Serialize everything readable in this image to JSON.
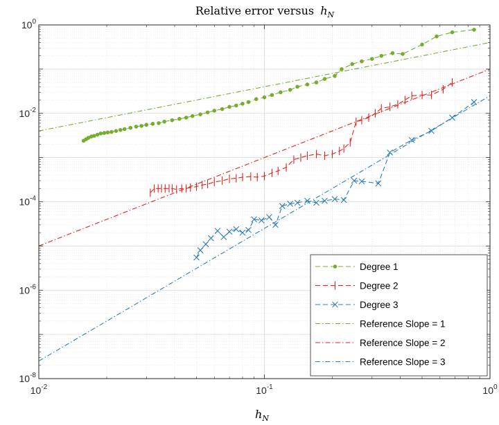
{
  "chart_data": {
    "type": "line",
    "title": "Relative error versus",
    "title_math": "h",
    "title_math_sub": "N",
    "xlabel": "h",
    "xlabel_sub": "N",
    "xscale": "log",
    "yscale": "log",
    "xlim": [
      0.01,
      1
    ],
    "ylim": [
      1e-08,
      1
    ],
    "grid": "on (major and minor)",
    "legend_position": "bottom-right",
    "x_ticks": [
      {
        "base": "10",
        "exp": "-2"
      },
      {
        "base": "10",
        "exp": "-1"
      },
      {
        "base": "10",
        "exp": "0"
      }
    ],
    "y_ticks": [
      {
        "base": "10",
        "exp": "-8"
      },
      {
        "base": "10",
        "exp": "-6"
      },
      {
        "base": "10",
        "exp": "-4"
      },
      {
        "base": "10",
        "exp": "-2"
      },
      {
        "base": "10",
        "exp": "0"
      }
    ],
    "series": [
      {
        "name": "Degree 1",
        "color": "#77AC30",
        "line": "dashed",
        "marker": "dot",
        "x": [
          0.0158,
          0.0162,
          0.0166,
          0.0171,
          0.0176,
          0.0182,
          0.0188,
          0.0195,
          0.0202,
          0.021,
          0.022,
          0.023,
          0.024,
          0.0255,
          0.027,
          0.0285,
          0.03,
          0.032,
          0.034,
          0.036,
          0.039,
          0.042,
          0.045,
          0.048,
          0.052,
          0.056,
          0.06,
          0.065,
          0.07,
          0.075,
          0.08,
          0.085,
          0.092,
          0.1,
          0.108,
          0.118,
          0.13,
          0.14,
          0.155,
          0.17,
          0.185,
          0.205,
          0.22,
          0.245,
          0.27,
          0.3,
          0.33,
          0.37,
          0.41,
          0.5,
          0.58,
          0.68,
          0.85
        ],
        "y": [
          0.0024,
          0.0026,
          0.0028,
          0.003,
          0.0031,
          0.0033,
          0.0035,
          0.0036,
          0.0037,
          0.0038,
          0.004,
          0.0042,
          0.0044,
          0.0047,
          0.005,
          0.0052,
          0.0055,
          0.0058,
          0.006,
          0.0065,
          0.007,
          0.0075,
          0.008,
          0.0087,
          0.0095,
          0.0105,
          0.0115,
          0.0125,
          0.014,
          0.015,
          0.0165,
          0.018,
          0.021,
          0.023,
          0.026,
          0.03,
          0.034,
          0.04,
          0.045,
          0.05,
          0.06,
          0.07,
          0.1,
          0.13,
          0.15,
          0.17,
          0.2,
          0.23,
          0.22,
          0.36,
          0.55,
          0.68,
          0.78
        ]
      },
      {
        "name": "Degree 2",
        "color": "#E3211C",
        "line": "dashed",
        "marker": "vertical-bar",
        "x": [
          0.0312,
          0.0325,
          0.0338,
          0.035,
          0.0363,
          0.0378,
          0.039,
          0.0408,
          0.043,
          0.045,
          0.047,
          0.05,
          0.053,
          0.056,
          0.06,
          0.065,
          0.07,
          0.075,
          0.08,
          0.087,
          0.093,
          0.1,
          0.108,
          0.115,
          0.125,
          0.135,
          0.145,
          0.155,
          0.17,
          0.185,
          0.2,
          0.215,
          0.225,
          0.24,
          0.255,
          0.27,
          0.29,
          0.31,
          0.33,
          0.36,
          0.39,
          0.42,
          0.45,
          0.5,
          0.55,
          0.62,
          0.68
        ],
        "y": [
          0.00016,
          0.0002,
          0.0002,
          0.0002,
          0.0002,
          0.0002,
          0.0002,
          0.00019,
          0.0002,
          0.0002,
          0.00021,
          0.00022,
          0.00024,
          0.00025,
          0.00028,
          0.0003,
          0.00033,
          0.00034,
          0.00036,
          0.00037,
          0.00036,
          0.00038,
          0.00045,
          0.0005,
          0.0006,
          0.0009,
          0.001,
          0.0011,
          0.0012,
          0.0011,
          0.0012,
          0.0014,
          0.0016,
          0.0022,
          0.0065,
          0.007,
          0.008,
          0.01,
          0.013,
          0.014,
          0.016,
          0.02,
          0.025,
          0.026,
          0.026,
          0.035,
          0.05
        ]
      },
      {
        "name": "Degree 3",
        "color": "#2E7EBB",
        "line": "dashed",
        "marker": "x",
        "x": [
          0.05,
          0.052,
          0.055,
          0.058,
          0.062,
          0.066,
          0.07,
          0.075,
          0.08,
          0.085,
          0.09,
          0.097,
          0.105,
          0.112,
          0.12,
          0.13,
          0.14,
          0.155,
          0.17,
          0.185,
          0.205,
          0.225,
          0.25,
          0.27,
          0.32,
          0.36,
          0.45,
          0.55,
          0.68,
          0.85
        ],
        "y": [
          5.5e-06,
          8e-06,
          1.1e-05,
          1.5e-05,
          2.2e-05,
          1.6e-05,
          2.1e-05,
          2.4e-05,
          2e-05,
          2.3e-05,
          4e-05,
          3.8e-05,
          4.5e-05,
          3e-05,
          8e-05,
          9e-05,
          9.5e-05,
          0.000105,
          9.5e-05,
          0.000105,
          0.000115,
          0.00011,
          0.0003,
          0.00029,
          0.00026,
          0.0013,
          0.0025,
          0.004,
          0.008,
          0.018
        ]
      }
    ],
    "reference_lines": [
      {
        "name": "Reference Slope = 1",
        "color": "#77AC30",
        "line": "dash-dot",
        "slope": 1,
        "y_at_x1": 0.4
      },
      {
        "name": "Reference Slope = 2",
        "color": "#E3211C",
        "line": "dash-dot",
        "slope": 2,
        "y_at_x1": 0.1
      },
      {
        "name": "Reference Slope = 3",
        "color": "#2E7EBB",
        "line": "dash-dot",
        "slope": 3,
        "y_at_x1": 0.025
      }
    ]
  }
}
